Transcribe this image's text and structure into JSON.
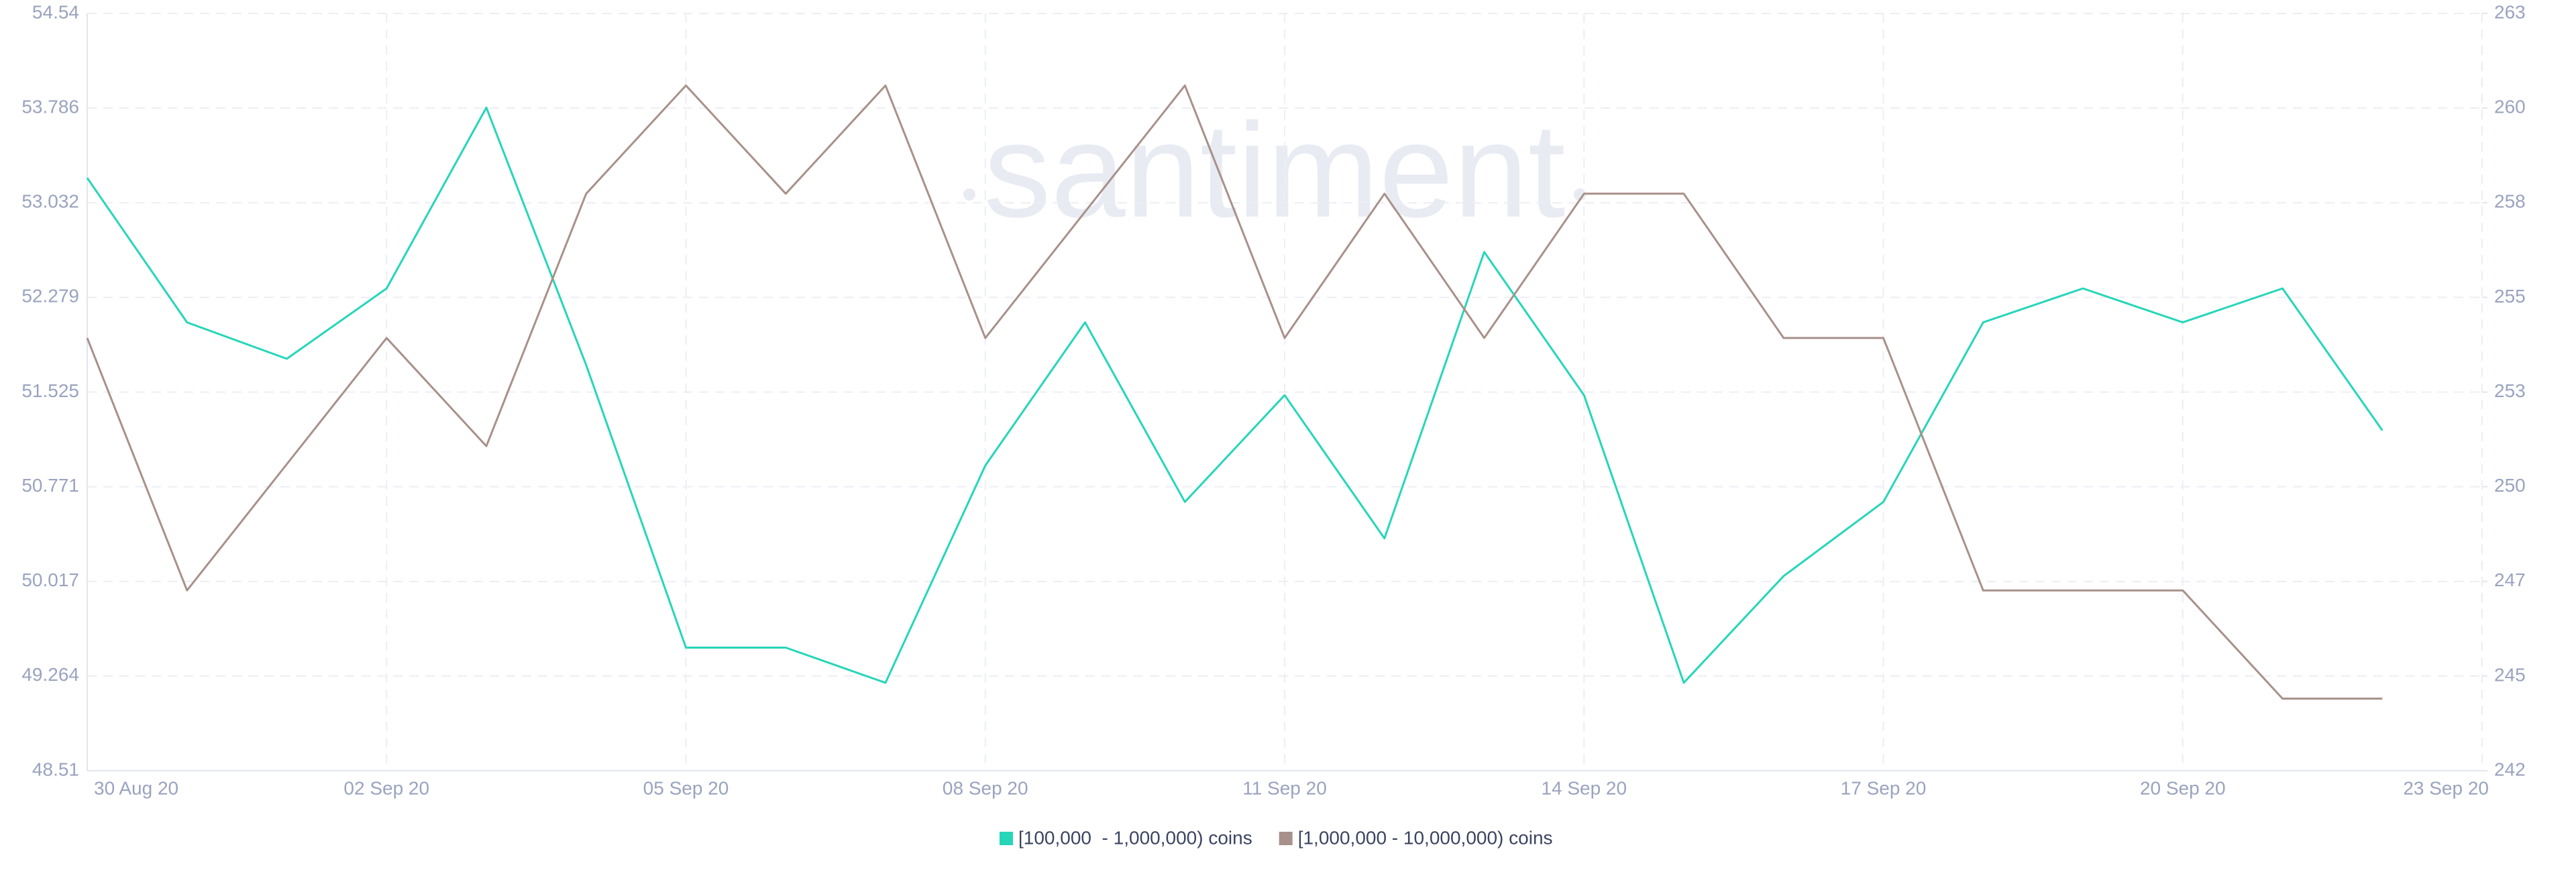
{
  "chart_data": {
    "type": "line",
    "watermark": "santiment",
    "categories": [
      "30 Aug 20",
      null,
      null,
      "02 Sep 20",
      null,
      null,
      "05 Sep 20",
      null,
      null,
      "08 Sep 20",
      null,
      null,
      "11 Sep 20",
      null,
      null,
      "14 Sep 20",
      null,
      null,
      "17 Sep 20",
      null,
      null,
      "20 Sep 20",
      null,
      null,
      "23 Sep 20"
    ],
    "series": [
      {
        "name": "[100,000  - 1,000,000) coins",
        "color": "#26d6b8",
        "values": [
          53.23,
          52.08,
          51.79,
          52.35,
          53.79,
          51.74,
          49.49,
          49.49,
          49.21,
          50.94,
          52.08,
          50.65,
          51.5,
          50.36,
          52.64,
          51.5,
          49.21,
          50.06,
          50.65,
          52.08,
          52.35,
          52.08,
          52.35,
          51.22,
          null
        ]
      },
      {
        "name": "[1,000,000 - 10,000,000) coins",
        "color": "#a8918a",
        "axis": "y2",
        "values": [
          254,
          247,
          250.5,
          254,
          251,
          258,
          261,
          258,
          261,
          254,
          257.5,
          261,
          254,
          258,
          254,
          258,
          258,
          254,
          254,
          247,
          247,
          247,
          244,
          244,
          null
        ]
      }
    ],
    "ylim": [
      48.51,
      54.54
    ],
    "yticks": [
      48.51,
      49.264,
      50.017,
      50.771,
      51.525,
      52.279,
      53.032,
      53.786,
      54.54
    ],
    "y2lim": [
      242,
      263
    ],
    "y2ticks": [
      242,
      {
        "value": 244.625,
        "label": "245"
      },
      {
        "value": 247.25,
        "label": "247"
      },
      {
        "value": 249.875,
        "label": "250"
      },
      {
        "value": 252.5,
        "label": "253"
      },
      {
        "value": 255.125,
        "label": "255"
      },
      {
        "value": 257.75,
        "label": "258"
      },
      {
        "value": 260.375,
        "label": "260"
      },
      263
    ],
    "grid": true,
    "legend": "bottom"
  }
}
